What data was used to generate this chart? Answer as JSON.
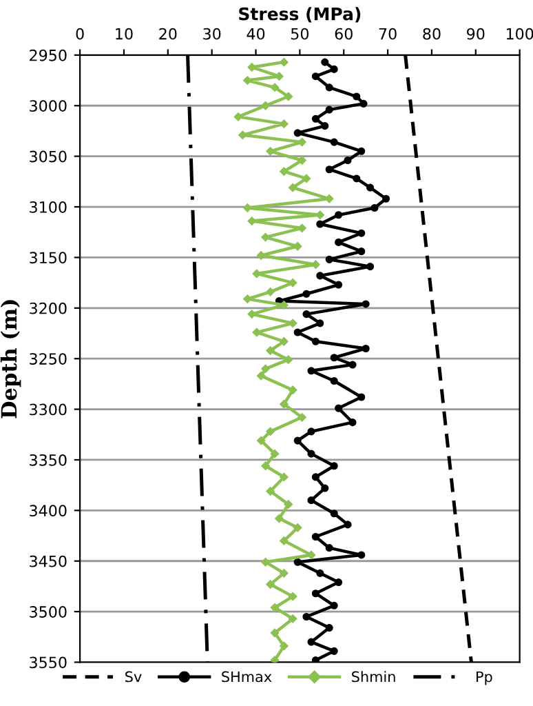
{
  "chart_data": {
    "type": "line",
    "xlabel": "Stress (MPa)",
    "ylabel": "Depth (m)",
    "xlim": [
      0,
      100
    ],
    "xticks": [
      0,
      10,
      20,
      30,
      40,
      50,
      60,
      70,
      80,
      90,
      100
    ],
    "ylim": [
      3550,
      2950
    ],
    "yticks": [
      2950,
      3000,
      3050,
      3100,
      3150,
      3200,
      3250,
      3300,
      3350,
      3400,
      3450,
      3500,
      3550
    ],
    "grid": "y",
    "legend": "bottom",
    "series": [
      {
        "name": "Sv",
        "color": "#000000",
        "line_style": "dashed",
        "marker": "none",
        "x": [
          74,
          89
        ],
        "values": [
          2950,
          3550
        ]
      },
      {
        "name": "SHmax",
        "color": "#000000",
        "line_style": "solid",
        "marker": "circle",
        "x": [
          55.7,
          57.8,
          53.6,
          56.7,
          62.9,
          64.5,
          56.7,
          53.6,
          55.7,
          49.5,
          57.8,
          64,
          60.9,
          56.7,
          62.9,
          66,
          69.6,
          67,
          58.8,
          54.6,
          64,
          58.8,
          64,
          56.7,
          66,
          54.6,
          58.8,
          51.5,
          45.3,
          65,
          51.5,
          54.6,
          49.5,
          53.6,
          65,
          57.8,
          62,
          52.6,
          57.8,
          64,
          58.8,
          62,
          52.6,
          49.5,
          52.6,
          57.8,
          53.6,
          55.7,
          52.6,
          57.8,
          60.9,
          53.6,
          56.7,
          64,
          49.5,
          54.6,
          58.8,
          53.6,
          57.8,
          51.5,
          56.7,
          52.6,
          57.8,
          53.6
        ],
        "values": [
          2957,
          2964,
          2971,
          2982,
          2991,
          2998,
          3004,
          3013,
          3020,
          3027,
          3036,
          3045,
          3054,
          3063,
          3072,
          3081,
          3092,
          3101,
          3108,
          3117,
          3126,
          3135,
          3144,
          3152,
          3159,
          3168,
          3177,
          3186,
          3193,
          3196,
          3206,
          3215,
          3224,
          3233,
          3240,
          3249,
          3256,
          3262,
          3272,
          3288,
          3299,
          3313,
          3322,
          3331,
          3344,
          3356,
          3367,
          3378,
          3390,
          3403,
          3414,
          3426,
          3437,
          3444,
          3451,
          3462,
          3471,
          3482,
          3494,
          3505,
          3516,
          3530,
          3539,
          3548
        ]
      },
      {
        "name": "Shmin",
        "color": "#8cc152",
        "line_style": "solid",
        "marker": "diamond",
        "x": [
          46.4,
          39.1,
          45.3,
          38.1,
          44.3,
          47.4,
          42.2,
          36,
          46.4,
          37,
          50.5,
          43.3,
          50.5,
          46.4,
          51.5,
          48.4,
          56.7,
          38.1,
          54.6,
          39.1,
          50.5,
          42.2,
          49.5,
          41.2,
          53.6,
          40.2,
          48.4,
          43.3,
          38.1,
          46.4,
          39.1,
          48.4,
          40.2,
          46.4,
          43.3,
          47.4,
          42.2,
          41.2,
          48.4,
          46.4,
          50.5,
          43.3,
          41.2,
          44.3,
          42.2,
          46.4,
          43.3,
          47.4,
          45.3,
          49.5,
          46.4,
          52.6,
          42.2,
          46.4,
          43.3,
          48.4,
          44.3,
          48.4,
          44.3,
          46.4,
          44.3
        ],
        "values": [
          2957,
          2962,
          2971,
          2975,
          2982,
          2991,
          3000,
          3011,
          3018,
          3029,
          3036,
          3045,
          3054,
          3065,
          3072,
          3081,
          3092,
          3101,
          3108,
          3114,
          3121,
          3130,
          3139,
          3148,
          3157,
          3166,
          3175,
          3184,
          3191,
          3197,
          3206,
          3215,
          3224,
          3233,
          3242,
          3251,
          3260,
          3267,
          3281,
          3295,
          3308,
          3322,
          3331,
          3344,
          3356,
          3367,
          3381,
          3394,
          3408,
          3417,
          3430,
          3444,
          3451,
          3462,
          3473,
          3485,
          3496,
          3507,
          3521,
          3534,
          3548
        ]
      },
      {
        "name": "Pp",
        "color": "#000000",
        "line_style": "dashdot",
        "marker": "none",
        "x": [
          24.5,
          29
        ],
        "values": [
          2950,
          3550
        ]
      }
    ]
  }
}
